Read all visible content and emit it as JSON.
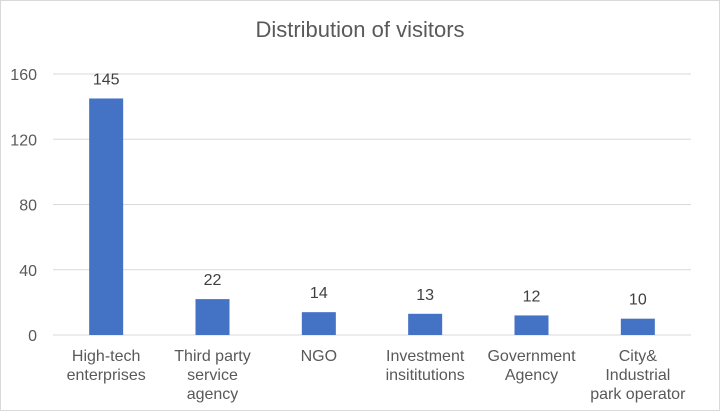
{
  "chart_data": {
    "type": "bar",
    "title": "Distribution of visitors",
    "categories": [
      [
        "High-tech",
        "enterprises"
      ],
      [
        "Third party",
        "service",
        "agency"
      ],
      [
        "NGO"
      ],
      [
        "Investment",
        "insititutions"
      ],
      [
        "Government",
        "Agency"
      ],
      [
        "City&",
        "Industrial",
        "park operator"
      ]
    ],
    "values": [
      145,
      22,
      14,
      13,
      12,
      10
    ],
    "ylim": [
      0,
      160
    ],
    "yticks": [
      0,
      40,
      80,
      120,
      160
    ],
    "grid": true,
    "legend": "none",
    "bar_color": "#4472c4",
    "grid_color": "#d9d9d9",
    "text_color": "#595959"
  }
}
